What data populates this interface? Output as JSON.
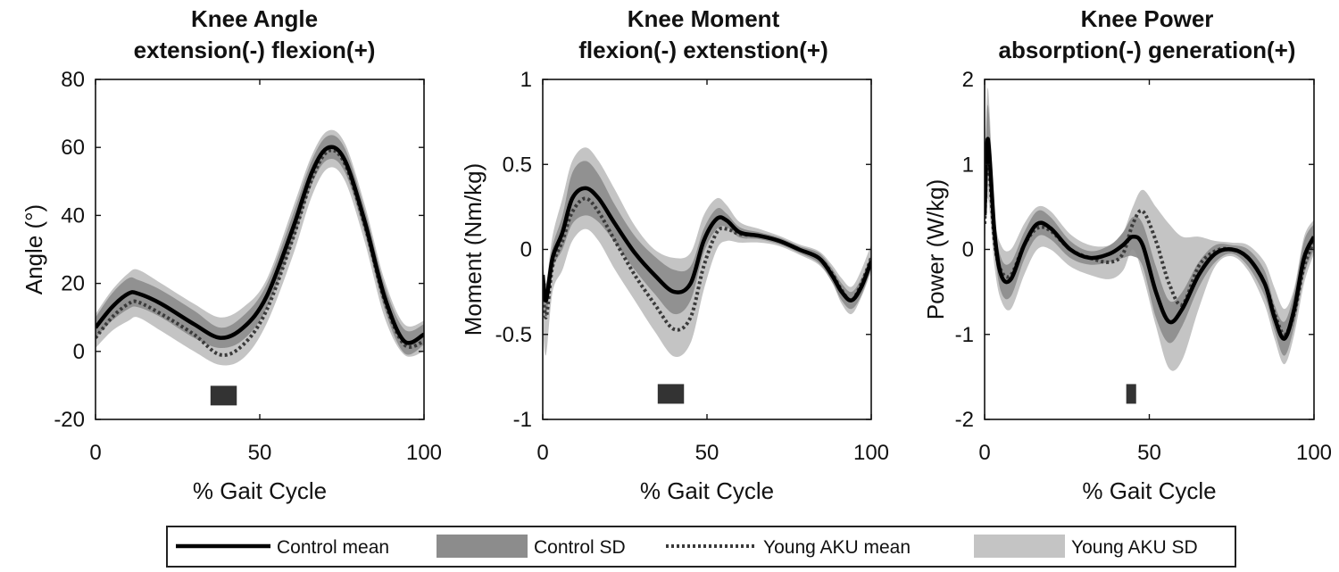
{
  "x_label": "% Gait Cycle",
  "legend": {
    "entries": [
      {
        "label": "Control mean",
        "kind": "line-solid",
        "color": "#000000"
      },
      {
        "label": "Control SD",
        "kind": "band",
        "color": "#8c8c8c"
      },
      {
        "label": "Young AKU mean",
        "kind": "line-dotted",
        "color": "#3a3a3a"
      },
      {
        "label": "Young AKU SD",
        "kind": "band",
        "color": "#c4c4c4"
      }
    ]
  },
  "colors": {
    "control_mean": "#000000",
    "control_sd": "#8c8c8c",
    "aku_mean": "#3a3a3a",
    "aku_sd": "#c4c4c4",
    "marker": "#333333"
  },
  "chart_data": [
    {
      "type": "line",
      "title_lines": [
        "Knee Angle",
        "extension(-) flexion(+)"
      ],
      "xlabel": "% Gait Cycle",
      "ylabel": "Angle (°)",
      "xlim": [
        0,
        100
      ],
      "ylim": [
        -20,
        80
      ],
      "xticks": [
        0,
        50,
        100
      ],
      "yticks": [
        -20,
        0,
        20,
        40,
        60,
        80
      ],
      "ytick_labels": [
        "-20",
        "0",
        "20",
        "40",
        "60",
        "80"
      ],
      "x": [
        0,
        5,
        10,
        13,
        20,
        30,
        38,
        45,
        52,
        60,
        66,
        71,
        76,
        82,
        88,
        94,
        100
      ],
      "series": [
        {
          "name": "Control mean",
          "values": [
            7,
            13,
            17,
            17,
            14,
            8,
            4,
            7,
            16,
            36,
            53,
            60,
            56,
            38,
            16,
            3,
            5
          ]
        },
        {
          "name": "Control SD",
          "lower": [
            4,
            9,
            12.5,
            13,
            10,
            4,
            1,
            3.5,
            12.5,
            32,
            49.5,
            56.5,
            52.5,
            34.5,
            12.5,
            -0.5,
            2
          ],
          "upper": [
            10,
            17,
            21.5,
            21,
            18,
            12,
            7,
            10.5,
            19.5,
            40,
            56.5,
            63.5,
            59.5,
            41.5,
            19.5,
            6.5,
            8
          ]
        },
        {
          "name": "Young AKU mean",
          "values": [
            4,
            10,
            14,
            14.5,
            11,
            5,
            -1,
            2,
            12,
            33,
            51,
            59,
            55,
            37,
            15,
            2,
            3
          ]
        },
        {
          "name": "Young AKU SD",
          "lower": [
            1,
            6,
            9,
            10,
            6,
            0,
            -4,
            -2,
            8,
            28,
            46,
            54,
            50,
            32,
            10,
            -1,
            0
          ],
          "upper": [
            11,
            18,
            23,
            24,
            20,
            14,
            10,
            13,
            21,
            42,
            58,
            65,
            61,
            43,
            21,
            8,
            9
          ]
        }
      ],
      "significance": [
        {
          "x_start": 35,
          "x_end": 43,
          "y": -13
        }
      ]
    },
    {
      "type": "line",
      "title_lines": [
        "Knee Moment",
        "flexion(-) extenstion(+)"
      ],
      "xlabel": "% Gait Cycle",
      "ylabel": "Moment (Nm/kg)",
      "xlim": [
        0,
        100
      ],
      "ylim": [
        -1,
        1
      ],
      "xticks": [
        0,
        50,
        100
      ],
      "yticks": [
        -1,
        -0.5,
        0,
        0.5,
        1
      ],
      "ytick_labels": [
        "-1",
        "-0.5",
        "0",
        "0.5",
        "1"
      ],
      "x": [
        0,
        1,
        3,
        6,
        9,
        13,
        17,
        22,
        28,
        34,
        40,
        45,
        49,
        53,
        56,
        60,
        66,
        72,
        78,
        84,
        88,
        91,
        94,
        97,
        100
      ],
      "series": [
        {
          "name": "Control mean",
          "values": [
            -0.15,
            -0.3,
            -0.05,
            0.1,
            0.3,
            0.36,
            0.3,
            0.15,
            -0.02,
            -0.15,
            -0.25,
            -0.2,
            0.05,
            0.18,
            0.17,
            0.1,
            0.08,
            0.05,
            0.0,
            -0.05,
            -0.15,
            -0.25,
            -0.3,
            -0.22,
            -0.07
          ]
        },
        {
          "name": "Control SD",
          "lower": [
            -0.25,
            -0.4,
            -0.12,
            0.0,
            0.15,
            0.2,
            0.16,
            0.04,
            -0.12,
            -0.26,
            -0.38,
            -0.3,
            -0.02,
            0.12,
            0.13,
            0.07,
            0.06,
            0.03,
            -0.02,
            -0.08,
            -0.19,
            -0.3,
            -0.35,
            -0.27,
            -0.11
          ],
          "upper": [
            -0.05,
            -0.2,
            0.02,
            0.2,
            0.45,
            0.52,
            0.44,
            0.26,
            0.08,
            -0.04,
            -0.12,
            -0.1,
            0.12,
            0.24,
            0.21,
            0.13,
            0.1,
            0.07,
            0.02,
            -0.02,
            -0.11,
            -0.2,
            -0.25,
            -0.17,
            -0.03
          ]
        },
        {
          "name": "Young AKU mean",
          "values": [
            -0.2,
            -0.4,
            -0.1,
            0.05,
            0.22,
            0.3,
            0.22,
            0.05,
            -0.15,
            -0.32,
            -0.47,
            -0.4,
            -0.1,
            0.1,
            0.12,
            0.09,
            0.08,
            0.05,
            0.0,
            -0.05,
            -0.14,
            -0.24,
            -0.3,
            -0.2,
            -0.05
          ]
        },
        {
          "name": "Young AKU SD",
          "lower": [
            -0.45,
            -0.62,
            -0.25,
            -0.12,
            0.05,
            0.12,
            0.05,
            -0.12,
            -0.3,
            -0.48,
            -0.63,
            -0.55,
            -0.24,
            0.0,
            0.05,
            0.04,
            0.04,
            0.02,
            -0.03,
            -0.09,
            -0.19,
            -0.32,
            -0.38,
            -0.28,
            -0.13
          ],
          "upper": [
            -0.05,
            -0.2,
            0.08,
            0.3,
            0.52,
            0.6,
            0.52,
            0.35,
            0.14,
            0.0,
            -0.05,
            -0.02,
            0.2,
            0.3,
            0.26,
            0.16,
            0.12,
            0.08,
            0.03,
            -0.01,
            -0.09,
            -0.17,
            -0.22,
            -0.12,
            0.03
          ]
        }
      ],
      "significance": [
        {
          "x_start": 35,
          "x_end": 43,
          "y": -0.85
        }
      ]
    },
    {
      "type": "line",
      "title_lines": [
        "Knee Power",
        "absorption(-) generation(+)"
      ],
      "xlabel": "% Gait Cycle",
      "ylabel": "Power (W/kg)",
      "xlim": [
        0,
        100
      ],
      "ylim": [
        -2,
        2
      ],
      "xticks": [
        0,
        50,
        100
      ],
      "yticks": [
        -2,
        -1,
        0,
        1,
        2
      ],
      "ytick_labels": [
        "-2",
        "-1",
        "0",
        "1",
        "2"
      ],
      "x": [
        0,
        1,
        3,
        5,
        8,
        12,
        16,
        20,
        26,
        32,
        38,
        42,
        45,
        48,
        52,
        56,
        60,
        65,
        70,
        75,
        80,
        85,
        88,
        91,
        94,
        97,
        100
      ],
      "series": [
        {
          "name": "Control mean",
          "values": [
            0.4,
            1.3,
            0.2,
            -0.3,
            -0.35,
            0.05,
            0.3,
            0.25,
            0.0,
            -0.1,
            -0.05,
            0.05,
            0.15,
            0.05,
            -0.5,
            -0.85,
            -0.7,
            -0.3,
            -0.05,
            0.0,
            -0.1,
            -0.4,
            -0.8,
            -1.05,
            -0.7,
            -0.1,
            0.15
          ]
        },
        {
          "name": "Control SD",
          "lower": [
            0.2,
            0.9,
            0.0,
            -0.5,
            -0.55,
            -0.12,
            0.15,
            0.12,
            -0.1,
            -0.18,
            -0.15,
            -0.1,
            -0.08,
            -0.2,
            -0.8,
            -1.1,
            -0.9,
            -0.45,
            -0.15,
            -0.05,
            -0.2,
            -0.55,
            -0.95,
            -1.25,
            -0.9,
            -0.3,
            0.0
          ],
          "upper": [
            0.6,
            1.7,
            0.4,
            -0.1,
            -0.15,
            0.2,
            0.45,
            0.38,
            0.1,
            -0.02,
            0.05,
            0.2,
            0.38,
            0.3,
            -0.2,
            -0.6,
            -0.5,
            -0.15,
            0.05,
            0.05,
            0.0,
            -0.25,
            -0.65,
            -0.85,
            -0.5,
            0.1,
            0.3
          ]
        },
        {
          "name": "Young AKU mean",
          "values": [
            0.3,
            1.1,
            0.1,
            -0.25,
            -0.3,
            0.05,
            0.25,
            0.22,
            0.0,
            -0.1,
            -0.15,
            -0.05,
            0.3,
            0.45,
            0.1,
            -0.4,
            -0.65,
            -0.2,
            -0.02,
            0.0,
            -0.1,
            -0.4,
            -0.75,
            -1.0,
            -0.75,
            -0.2,
            0.1
          ]
        },
        {
          "name": "Young AKU SD",
          "lower": [
            0.0,
            0.6,
            -0.2,
            -0.6,
            -0.7,
            -0.3,
            0.0,
            0.0,
            -0.2,
            -0.3,
            -0.35,
            -0.25,
            0.0,
            -0.3,
            -0.9,
            -1.4,
            -1.3,
            -0.7,
            -0.2,
            -0.08,
            -0.25,
            -0.65,
            -1.05,
            -1.35,
            -1.0,
            -0.4,
            -0.05
          ],
          "upper": [
            0.7,
            1.9,
            0.45,
            0.05,
            0.0,
            0.3,
            0.5,
            0.45,
            0.18,
            0.05,
            0.05,
            0.2,
            0.5,
            0.7,
            0.5,
            0.3,
            0.15,
            0.15,
            0.1,
            0.08,
            0.05,
            -0.15,
            -0.45,
            -0.7,
            -0.45,
            0.15,
            0.35
          ]
        }
      ],
      "significance": [
        {
          "x_start": 43,
          "x_end": 46,
          "y": -1.7
        }
      ]
    }
  ]
}
